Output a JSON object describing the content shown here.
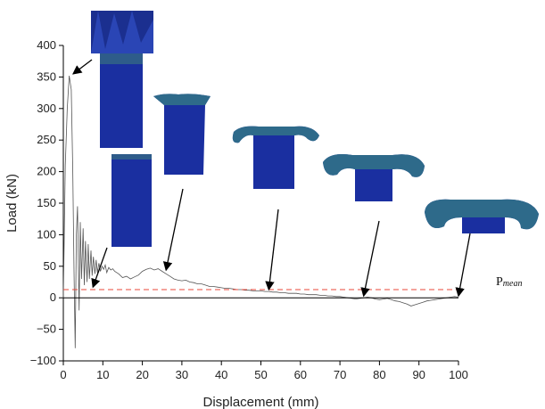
{
  "chart_data": {
    "type": "line",
    "title": "",
    "xlabel": "Displacement (mm)",
    "ylabel": "Load (kN)",
    "xlim": [
      0,
      100
    ],
    "ylim": [
      -100,
      400
    ],
    "xticks": [
      0,
      10,
      20,
      30,
      40,
      50,
      60,
      70,
      80,
      90,
      100
    ],
    "yticks": [
      -100,
      -50,
      0,
      50,
      100,
      150,
      200,
      250,
      300,
      350,
      400
    ],
    "grid": false,
    "legend": "none",
    "series": [
      {
        "color": "#555555",
        "x": [
          0,
          0.5,
          1.0,
          1.5,
          2.0,
          2.4,
          2.7,
          3.0,
          3.3,
          3.6,
          4.0,
          4.3,
          4.6,
          5.0,
          5.3,
          5.6,
          6.0,
          6.3,
          6.6,
          7.0,
          7.3,
          7.6,
          8.0,
          8.3,
          8.6,
          9.0,
          9.4,
          9.8,
          10.2,
          10.6,
          11.0,
          11.5,
          12.0,
          12.5,
          13.0,
          14,
          15,
          16,
          17,
          18,
          19,
          20,
          21,
          22,
          23,
          24,
          25,
          26,
          27,
          28,
          29,
          30,
          31,
          32,
          33,
          34,
          35,
          36,
          37,
          38,
          39,
          40,
          41,
          42,
          43,
          44,
          45,
          46,
          47,
          48,
          49,
          50,
          51,
          52,
          53,
          54,
          55,
          56,
          57,
          58,
          59,
          60,
          61,
          62,
          63,
          64,
          65,
          66,
          67,
          68,
          69,
          70,
          71,
          72,
          73,
          74,
          75,
          76,
          77,
          78,
          79,
          80,
          81,
          82,
          83,
          84,
          85,
          86,
          87,
          88,
          89,
          90,
          91,
          92,
          93,
          94,
          95,
          96,
          97,
          98,
          99,
          100
        ],
        "y": [
          0,
          210,
          300,
          352,
          330,
          200,
          40,
          -80,
          100,
          145,
          -20,
          120,
          30,
          110,
          20,
          90,
          25,
          85,
          30,
          75,
          35,
          65,
          38,
          60,
          40,
          55,
          42,
          50,
          45,
          52,
          40,
          48,
          44,
          46,
          42,
          38,
          32,
          34,
          30,
          33,
          36,
          42,
          45,
          47,
          44,
          46,
          42,
          38,
          34,
          30,
          28,
          27,
          28,
          25,
          24,
          22,
          22,
          20,
          18,
          18,
          17,
          16,
          15,
          15,
          14,
          13,
          13,
          12,
          12,
          11,
          11,
          11,
          10,
          10,
          9,
          9,
          8,
          8,
          7,
          7,
          7,
          6,
          6,
          5,
          5,
          5,
          4,
          4,
          3,
          3,
          2,
          2,
          1,
          0,
          -1,
          -2,
          -1,
          0,
          1,
          0,
          -2,
          -3,
          -2,
          -1,
          -3,
          -5,
          -6,
          -8,
          -10,
          -13,
          -11,
          -9,
          -7,
          -5,
          -4,
          -3,
          -2,
          -1,
          0,
          1,
          2,
          1
        ]
      }
    ],
    "reference_lines": [
      {
        "label": "P",
        "label_subscript": "mean",
        "y": 13,
        "color": "#e8473a",
        "style": "dashed"
      },
      {
        "y": 0,
        "color": "#000000",
        "style": "solid"
      }
    ],
    "annotations": [
      {
        "x": 2.5,
        "y": 355
      },
      {
        "x": 7.5,
        "y": 17
      },
      {
        "x": 26,
        "y": 44
      },
      {
        "x": 52,
        "y": 13
      },
      {
        "x": 76,
        "y": 3
      },
      {
        "x": 100,
        "y": 3
      }
    ]
  }
}
